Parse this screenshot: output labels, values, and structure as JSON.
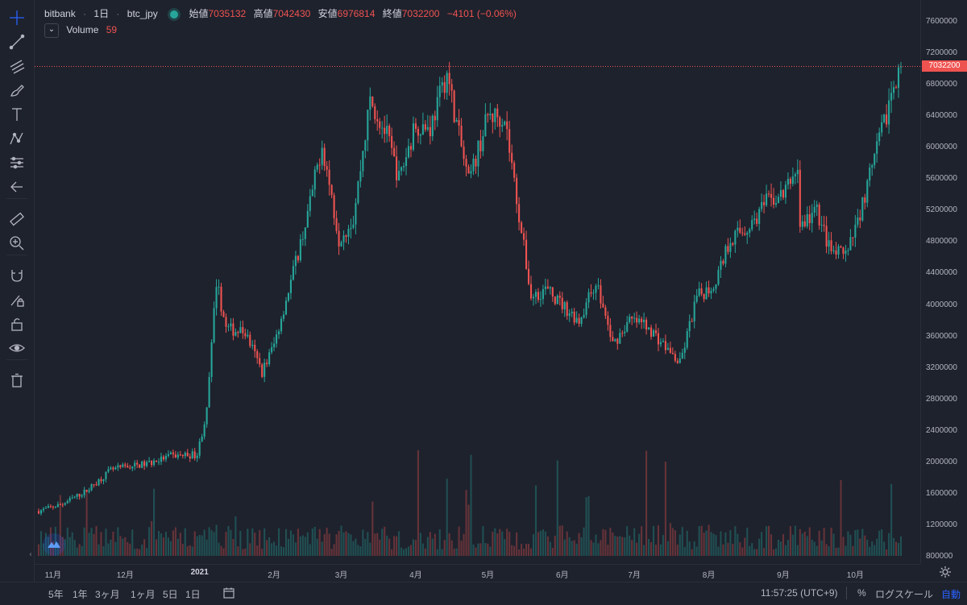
{
  "legend": {
    "symbol": "bitbank",
    "interval": "1日",
    "pair": "btc_jpy",
    "open_label": "始値",
    "open_value": "7035132",
    "high_label": "高値",
    "high_value": "7042430",
    "low_label": "安値",
    "low_value": "6976814",
    "close_label": "終値",
    "close_value": "7032200",
    "change": "−4101 (−0.06%)"
  },
  "volume_legend": {
    "label": "Volume",
    "value": "59",
    "collapse_icon": "chevron-down-icon"
  },
  "price_axis": {
    "ticks": [
      "7600000",
      "7200000",
      "6800000",
      "6400000",
      "6000000",
      "5600000",
      "5200000",
      "4800000",
      "4400000",
      "4000000",
      "3600000",
      "3200000",
      "2800000",
      "2400000",
      "2000000",
      "1600000",
      "1200000",
      "800000"
    ],
    "current_price": "7032200"
  },
  "time_axis": {
    "labels": [
      "11月",
      "12月",
      "2021",
      "2月",
      "3月",
      "4月",
      "5月",
      "6月",
      "7月",
      "8月",
      "9月",
      "10月"
    ]
  },
  "bottom_bar": {
    "ranges": [
      "5年",
      "1年",
      "3ヶ月",
      "1ヶ月",
      "5日",
      "1日"
    ],
    "clock": "11:57:25 (UTC+9)",
    "percent": "%",
    "log_scale": "ログスケール",
    "auto": "自動"
  },
  "toolbar": {
    "icons": [
      "crosshair-icon",
      "trend-line-icon",
      "pitchfork-icon",
      "brush-icon",
      "text-icon",
      "pattern-icon",
      "prediction-icon",
      "back-arrow-icon",
      "ruler-icon",
      "zoom-in-icon",
      "magnet-icon",
      "lock-drawing-icon",
      "unlock-icon",
      "eye-icon",
      "trash-icon"
    ]
  },
  "colors": {
    "background": "#1e222d",
    "up": "#26a69a",
    "down": "#ef5350",
    "text": "#b2b5be",
    "current_price_line": "#ef5350"
  },
  "chart_data": {
    "type": "candlestick",
    "ylim": [
      800000,
      7600000
    ],
    "y_scale": "linear",
    "grid": false,
    "x_start": "2020-10-26",
    "x_end": "2021-10-20",
    "price_path": [
      [
        "2020-10-26",
        1380000
      ],
      [
        "2020-11-05",
        1470000
      ],
      [
        "2020-11-15",
        1640000
      ],
      [
        "2020-11-25",
        1900000
      ],
      [
        "2020-12-01",
        1940000
      ],
      [
        "2020-12-10",
        1980000
      ],
      [
        "2020-12-20",
        2080000
      ],
      [
        "2020-12-31",
        2100000
      ],
      [
        "2021-01-04",
        2650000
      ],
      [
        "2021-01-08",
        4300000
      ],
      [
        "2021-01-12",
        3700000
      ],
      [
        "2021-01-20",
        3650000
      ],
      [
        "2021-01-27",
        3150000
      ],
      [
        "2021-02-01",
        3500000
      ],
      [
        "2021-02-08",
        4300000
      ],
      [
        "2021-02-15",
        5150000
      ],
      [
        "2021-02-21",
        6050000
      ],
      [
        "2021-02-28",
        4850000
      ],
      [
        "2021-03-06",
        5100000
      ],
      [
        "2021-03-13",
        6600000
      ],
      [
        "2021-03-20",
        6150000
      ],
      [
        "2021-03-25",
        5600000
      ],
      [
        "2021-04-01",
        6300000
      ],
      [
        "2021-04-07",
        6250000
      ],
      [
        "2021-04-14",
        6950000
      ],
      [
        "2021-04-18",
        6300000
      ],
      [
        "2021-04-23",
        5550000
      ],
      [
        "2021-05-01",
        6400000
      ],
      [
        "2021-05-08",
        6400000
      ],
      [
        "2021-05-13",
        5350000
      ],
      [
        "2021-05-19",
        4100000
      ],
      [
        "2021-05-25",
        4200000
      ],
      [
        "2021-06-01",
        4000000
      ],
      [
        "2021-06-08",
        3800000
      ],
      [
        "2021-06-15",
        4300000
      ],
      [
        "2021-06-22",
        3500000
      ],
      [
        "2021-06-29",
        3800000
      ],
      [
        "2021-07-06",
        3750000
      ],
      [
        "2021-07-13",
        3500000
      ],
      [
        "2021-07-20",
        3250000
      ],
      [
        "2021-07-27",
        4100000
      ],
      [
        "2021-08-03",
        4250000
      ],
      [
        "2021-08-10",
        4850000
      ],
      [
        "2021-08-18",
        5000000
      ],
      [
        "2021-08-25",
        5300000
      ],
      [
        "2021-09-01",
        5400000
      ],
      [
        "2021-09-07",
        5750000
      ],
      [
        "2021-09-08",
        5000000
      ],
      [
        "2021-09-15",
        5200000
      ],
      [
        "2021-09-21",
        4650000
      ],
      [
        "2021-09-28",
        4650000
      ],
      [
        "2021-10-05",
        5400000
      ],
      [
        "2021-10-12",
        6200000
      ],
      [
        "2021-10-19",
        7032200
      ]
    ]
  }
}
